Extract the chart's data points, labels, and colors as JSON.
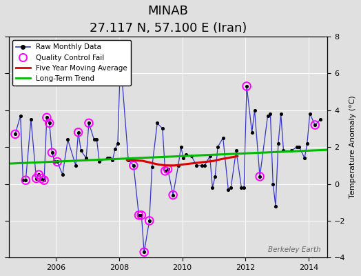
{
  "title": "MINAB",
  "subtitle": "27.117 N, 57.100 E (Iran)",
  "ylabel": "Temperature Anomaly (°C)",
  "watermark": "Berkeley Earth",
  "ylim": [
    -4,
    8
  ],
  "yticks": [
    -4,
    -2,
    0,
    2,
    4,
    6,
    8
  ],
  "xlim": [
    2004.5,
    2014.6
  ],
  "xticks": [
    2006,
    2008,
    2010,
    2012,
    2014
  ],
  "background_color": "#e0e0e0",
  "raw_x": [
    2004.708,
    2004.875,
    2004.958,
    2005.042,
    2005.208,
    2005.375,
    2005.458,
    2005.542,
    2005.625,
    2005.708,
    2005.792,
    2005.875,
    2005.958,
    2006.042,
    2006.208,
    2006.375,
    2006.625,
    2006.708,
    2006.792,
    2006.958,
    2007.042,
    2007.208,
    2007.292,
    2007.375,
    2007.625,
    2007.708,
    2007.792,
    2007.875,
    2007.958,
    2008.042,
    2008.292,
    2008.458,
    2008.625,
    2008.708,
    2008.792,
    2008.958,
    2009.042,
    2009.208,
    2009.375,
    2009.458,
    2009.542,
    2009.708,
    2009.875,
    2009.958,
    2010.042,
    2010.125,
    2010.292,
    2010.458,
    2010.625,
    2010.708,
    2010.875,
    2010.958,
    2011.042,
    2011.125,
    2011.292,
    2011.458,
    2011.542,
    2011.708,
    2011.875,
    2011.958,
    2012.042,
    2012.208,
    2012.292,
    2012.458,
    2012.708,
    2012.792,
    2012.875,
    2012.958,
    2013.042,
    2013.125,
    2013.208,
    2013.458,
    2013.625,
    2013.708,
    2013.875,
    2013.958,
    2014.042,
    2014.208,
    2014.375
  ],
  "raw_y": [
    2.7,
    3.7,
    0.2,
    0.2,
    3.5,
    0.3,
    0.5,
    0.3,
    0.2,
    3.6,
    3.3,
    1.7,
    1.2,
    1.2,
    0.5,
    2.4,
    1.0,
    2.8,
    1.8,
    1.4,
    3.3,
    2.4,
    2.4,
    1.2,
    1.4,
    1.4,
    1.3,
    1.9,
    2.2,
    6.8,
    1.3,
    1.0,
    -1.7,
    -1.7,
    -3.7,
    -2.0,
    0.9,
    3.3,
    3.0,
    0.7,
    0.8,
    -0.6,
    1.0,
    2.0,
    1.4,
    1.6,
    1.5,
    1.0,
    1.0,
    1.0,
    1.5,
    -0.2,
    0.4,
    2.0,
    2.5,
    -0.3,
    -0.2,
    1.8,
    -0.2,
    -0.2,
    5.3,
    2.8,
    4.0,
    0.4,
    3.7,
    3.8,
    0.0,
    -1.2,
    2.2,
    3.8,
    1.8,
    1.8,
    2.0,
    2.0,
    1.4,
    2.2,
    3.8,
    3.2,
    3.5
  ],
  "qc_fail_x": [
    2004.708,
    2005.042,
    2005.375,
    2005.458,
    2005.542,
    2005.625,
    2005.708,
    2005.792,
    2005.875,
    2006.042,
    2006.708,
    2007.042,
    2008.458,
    2008.625,
    2008.708,
    2008.792,
    2008.958,
    2009.458,
    2009.542,
    2009.708,
    2012.042,
    2012.458,
    2014.208
  ],
  "qc_fail_y": [
    2.7,
    0.2,
    0.3,
    0.5,
    0.3,
    0.2,
    3.6,
    3.3,
    1.7,
    1.2,
    2.8,
    3.3,
    1.0,
    -1.7,
    -1.7,
    -3.7,
    -2.0,
    0.7,
    0.8,
    -0.6,
    5.3,
    0.4,
    3.2
  ],
  "moving_avg_x": [
    2008.25,
    2008.75,
    2009.0,
    2009.25,
    2009.5,
    2009.75,
    2010.0,
    2010.25,
    2010.5,
    2010.75,
    2011.0,
    2011.25,
    2011.75
  ],
  "moving_avg_y": [
    1.3,
    1.25,
    1.15,
    1.05,
    1.0,
    1.0,
    1.05,
    1.1,
    1.15,
    1.2,
    1.25,
    1.35,
    1.5
  ],
  "trend_x": [
    2004.5,
    2014.6
  ],
  "trend_y": [
    1.1,
    1.85
  ],
  "line_color": "#3333cc",
  "dot_color": "#000000",
  "qc_color": "#ff00ff",
  "moving_avg_color": "#dd0000",
  "trend_color": "#00bb00",
  "grid_color": "#ffffff",
  "title_fontsize": 13,
  "subtitle_fontsize": 9,
  "tick_fontsize": 8,
  "ylabel_fontsize": 8
}
